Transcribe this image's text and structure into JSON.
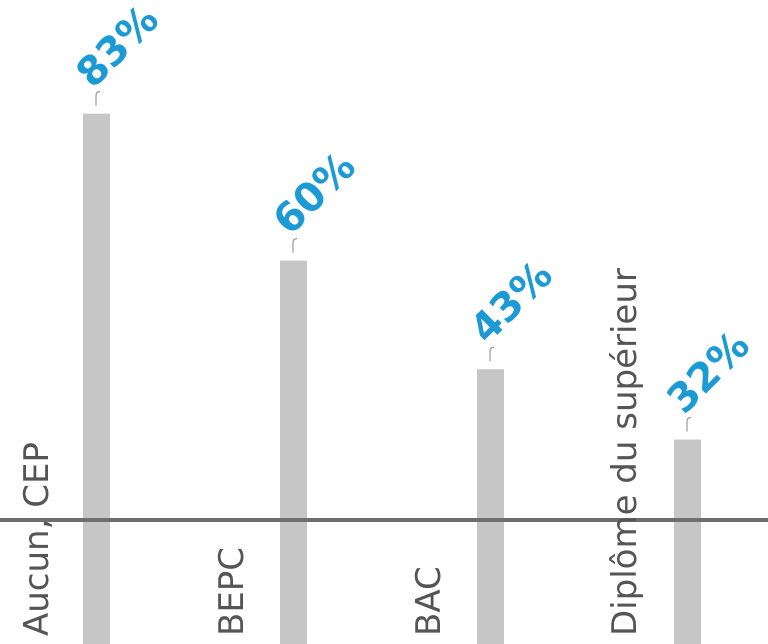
{
  "chart_data": {
    "type": "bar",
    "categories": [
      "Aucun, CEP",
      "BEPC",
      "BAC",
      "Diplôme du supérieur"
    ],
    "values": [
      83,
      60,
      43,
      32
    ],
    "value_labels": [
      "83%",
      "60%",
      "43%",
      "32%"
    ],
    "title": "",
    "xlabel": "",
    "ylabel": "",
    "ylim": [
      0,
      100
    ],
    "grid": false,
    "legend": "none",
    "colors": {
      "bar": "#c6c6c6",
      "value_label": "#1b9ad6",
      "baseline": "#6e6e6e",
      "category_label": "#555555"
    }
  }
}
